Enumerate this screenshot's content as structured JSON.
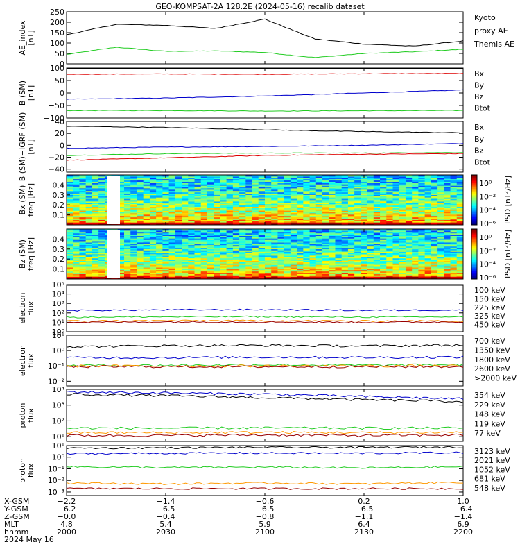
{
  "title": "GEO-KOMPSAT-2A 128.2E (2024-05-16) recalib dataset",
  "colors": {
    "black": "#000000",
    "blue": "#0000cc",
    "green": "#22cc22",
    "red": "#dd0000",
    "orange": "#ff9900",
    "darkred": "#990000"
  },
  "chart_data": [
    {
      "id": "ae",
      "type": "line",
      "ylabel": [
        "AE_index",
        "[nT]"
      ],
      "ylim": [
        0,
        250
      ],
      "yticks": [
        "0",
        "50",
        "100",
        "150",
        "200",
        "250"
      ],
      "x": [
        "2000",
        "2015",
        "2030",
        "2045",
        "2100",
        "2115",
        "2130",
        "2145",
        "2200"
      ],
      "series": [
        {
          "name": "Kyoto proxy AE",
          "color": "green",
          "label_lines": [
            "Kyoto",
            "proxy AE"
          ],
          "values": [
            45,
            80,
            60,
            62,
            55,
            30,
            50,
            58,
            70
          ]
        },
        {
          "name": "Themis AE",
          "color": "black",
          "label_lines": [
            "Themis AE"
          ],
          "values": [
            140,
            190,
            185,
            170,
            215,
            120,
            95,
            85,
            110
          ]
        }
      ]
    },
    {
      "id": "bsm",
      "type": "line",
      "ylabel": [
        "B (SM)",
        "[nT]"
      ],
      "ylim": [
        -100,
        100
      ],
      "yticks": [
        "−100",
        "−50",
        "0",
        "50",
        "100"
      ],
      "x": [
        "2000",
        "2030",
        "2100",
        "2130",
        "2200"
      ],
      "series": [
        {
          "name": "Bx",
          "color": "blue",
          "label_lines": [
            "Bx"
          ],
          "values": [
            -25,
            -20,
            -12,
            0,
            12
          ]
        },
        {
          "name": "By",
          "color": "green",
          "label_lines": [
            "By"
          ],
          "values": [
            -70,
            -70,
            -72,
            -71,
            -70
          ]
        },
        {
          "name": "Bz",
          "color": "red",
          "label_lines": [
            "Bz"
          ],
          "values": [
            75,
            76,
            75,
            77,
            78
          ]
        },
        {
          "name": "Btot",
          "color": "black",
          "label_lines": [
            "Btot"
          ],
          "values": [
            100,
            102,
            104,
            105,
            104
          ]
        }
      ]
    },
    {
      "id": "bigrf",
      "type": "line",
      "ylabel": [
        "B (SM)−IGRF (SM)",
        "[nT]"
      ],
      "ylim": [
        -45,
        40
      ],
      "yticks": [
        "−40",
        "−20",
        "0",
        "20",
        "40"
      ],
      "x": [
        "2000",
        "2030",
        "2100",
        "2130",
        "2200"
      ],
      "series": [
        {
          "name": "Bx",
          "color": "blue",
          "label_lines": [
            "Bx"
          ],
          "values": [
            -5,
            -3,
            -2,
            0,
            3
          ]
        },
        {
          "name": "By",
          "color": "green",
          "label_lines": [
            "By"
          ],
          "values": [
            -17,
            -14,
            -13,
            -13,
            -12
          ]
        },
        {
          "name": "Bz",
          "color": "red",
          "label_lines": [
            "Bz"
          ],
          "values": [
            -25,
            -21,
            -17,
            -15,
            -14
          ]
        },
        {
          "name": "Btot",
          "color": "black",
          "label_lines": [
            "Btot"
          ],
          "values": [
            32,
            30,
            26,
            23,
            21
          ]
        }
      ]
    },
    {
      "id": "bx_spec",
      "type": "heatmap",
      "ylabel": [
        "Bx (SM)",
        "freq [Hz]"
      ],
      "ylim": [
        0,
        0.5
      ],
      "yticks": [
        "0.1",
        "0.2",
        "0.3",
        "0.4"
      ],
      "colorbar": {
        "label": "PSD [nT²/Hz]",
        "ticks": [
          "10⁰",
          "10⁻²",
          "10⁻⁴",
          "10⁻⁶"
        ]
      },
      "gap": [
        2012,
        2017
      ]
    },
    {
      "id": "bz_spec",
      "type": "heatmap",
      "ylabel": [
        "Bz (SM)",
        "freq [Hz]"
      ],
      "ylim": [
        0,
        0.5
      ],
      "yticks": [
        "0.1",
        "0.2",
        "0.3",
        "0.4"
      ],
      "colorbar": {
        "label": "PSD [nT²/Hz]",
        "ticks": [
          "10⁰",
          "10⁻²",
          "10⁻⁴",
          "10⁻⁶"
        ]
      },
      "gap": [
        2012,
        2017
      ]
    },
    {
      "id": "elec_low",
      "type": "line",
      "log": true,
      "ylabel": [
        "electron",
        "flux"
      ],
      "ylim": [
        1,
        100000
      ],
      "yticks": [
        "10⁰",
        "10¹",
        "10²",
        "10³",
        "10⁴",
        "10⁵"
      ],
      "series": [
        {
          "name": "100 keV",
          "color": "black",
          "label_lines": [
            "100 keV"
          ],
          "values": [
            110000.0,
            120000.0,
            120000.0,
            110000.0,
            120000.0
          ]
        },
        {
          "name": "150 keV",
          "color": "blue",
          "label_lines": [
            "150 keV"
          ],
          "values": [
            180,
            210,
            220,
            190,
            200
          ]
        },
        {
          "name": "225 keV",
          "color": "green",
          "label_lines": [
            "225 keV"
          ],
          "values": [
            35,
            38,
            40,
            36,
            38
          ]
        },
        {
          "name": "325 keV",
          "color": "orange",
          "label_lines": [
            "325 keV"
          ],
          "values": [
            14,
            15,
            15,
            14,
            14
          ]
        },
        {
          "name": "450 keV",
          "color": "darkred",
          "label_lines": [
            "450 keV"
          ],
          "values": [
            10,
            11,
            11,
            10,
            11
          ]
        }
      ]
    },
    {
      "id": "elec_high",
      "type": "line",
      "log": true,
      "ylabel": [
        "electron",
        "flux"
      ],
      "ylim": [
        0.005,
        10
      ],
      "yticks": [
        "10⁻²",
        "10⁻¹",
        "10⁰",
        "10¹"
      ],
      "series": [
        {
          "name": "700 keV",
          "color": "black",
          "label_lines": [
            "700 keV"
          ],
          "values": [
            1.8,
            2.1,
            2.2,
            2.0,
            2.3
          ]
        },
        {
          "name": "1350 keV",
          "color": "blue",
          "label_lines": [
            "1350 keV"
          ],
          "values": [
            0.35,
            0.35,
            0.38,
            0.36,
            0.38
          ]
        },
        {
          "name": "1800 keV",
          "color": "green",
          "label_lines": [
            "1800 keV"
          ],
          "values": [
            0.11,
            0.11,
            0.12,
            0.11,
            0.12
          ]
        },
        {
          "name": "2600 keV",
          "color": "orange",
          "label_lines": [
            "2600 keV"
          ],
          "values": [
            0.1,
            0.1,
            0.1,
            0.1,
            0.1
          ]
        },
        {
          "name": ">2000 keV",
          "color": "darkred",
          "label_lines": [
            ">2000 keV"
          ],
          "values": [
            0.09,
            0.09,
            0.09,
            0.09,
            0.09
          ]
        }
      ]
    },
    {
      "id": "prot_low",
      "type": "line",
      "log": true,
      "ylabel": [
        "proton",
        "flux"
      ],
      "ylim": [
        5,
        10000
      ],
      "yticks": [
        "10¹",
        "10²",
        "10³",
        "10⁴"
      ],
      "series": [
        {
          "name": "354 keV",
          "color": "darkred",
          "label_lines": [
            "354 keV"
          ],
          "values": [
            12,
            12,
            13,
            12,
            13
          ]
        },
        {
          "name": "229 keV",
          "color": "orange",
          "label_lines": [
            "229 keV"
          ],
          "values": [
            18,
            18,
            19,
            18,
            19
          ]
        },
        {
          "name": "148 keV",
          "color": "green",
          "label_lines": [
            "148 keV"
          ],
          "values": [
            35,
            35,
            36,
            35,
            36
          ]
        },
        {
          "name": "119 keV",
          "color": "blue",
          "label_lines": [
            "119 keV"
          ],
          "values": [
            7000,
            6000,
            5000,
            3500,
            2500
          ]
        },
        {
          "name": "77 keV",
          "color": "black",
          "label_lines": [
            "77 keV"
          ],
          "values": [
            5000,
            4000,
            3000,
            2200,
            1700
          ]
        }
      ]
    },
    {
      "id": "prot_high",
      "type": "line",
      "log": true,
      "ylabel": [
        "proton",
        "flux"
      ],
      "ylim": [
        0.0005,
        10
      ],
      "yticks": [
        "10⁻³",
        "10⁻²",
        "10⁻¹",
        "10⁰",
        "10¹"
      ],
      "series": [
        {
          "name": "3123 keV",
          "color": "darkred",
          "label_lines": [
            "3123 keV"
          ],
          "values": [
            0.002,
            0.002,
            0.002,
            0.002,
            0.002
          ]
        },
        {
          "name": "2021 keV",
          "color": "orange",
          "label_lines": [
            "2021 keV"
          ],
          "values": [
            0.006,
            0.005,
            0.006,
            0.005,
            0.007
          ]
        },
        {
          "name": "1052 keV",
          "color": "green",
          "label_lines": [
            "1052 keV"
          ],
          "values": [
            0.15,
            0.13,
            0.14,
            0.12,
            0.15
          ]
        },
        {
          "name": "681 keV",
          "color": "blue",
          "label_lines": [
            "681 keV"
          ],
          "values": [
            2.0,
            2.2,
            2.3,
            2.2,
            2.5
          ]
        },
        {
          "name": "548 keV",
          "color": "black",
          "label_lines": [
            "548 keV"
          ],
          "values": [
            6,
            6.5,
            7,
            7,
            7.5
          ]
        }
      ]
    }
  ],
  "xaxis": {
    "row_labels": [
      "X-GSM",
      "Y-GSM",
      "Z-GSM",
      "MLT",
      "hhmm",
      "2024 May 16"
    ],
    "columns": [
      [
        "−2.2",
        "−6.2",
        "−0.0",
        "4.8",
        "2000"
      ],
      [
        "−1.4",
        "−6.5",
        "−0.4",
        "5.4",
        "2030"
      ],
      [
        "−0.6",
        "−6.5",
        "−0.8",
        "5.9",
        "2100"
      ],
      [
        "0.2",
        "−6.5",
        "−1.1",
        "6.4",
        "2130"
      ],
      [
        "1.0",
        "−6.4",
        "−1.4",
        "6.9",
        "2200"
      ]
    ]
  }
}
